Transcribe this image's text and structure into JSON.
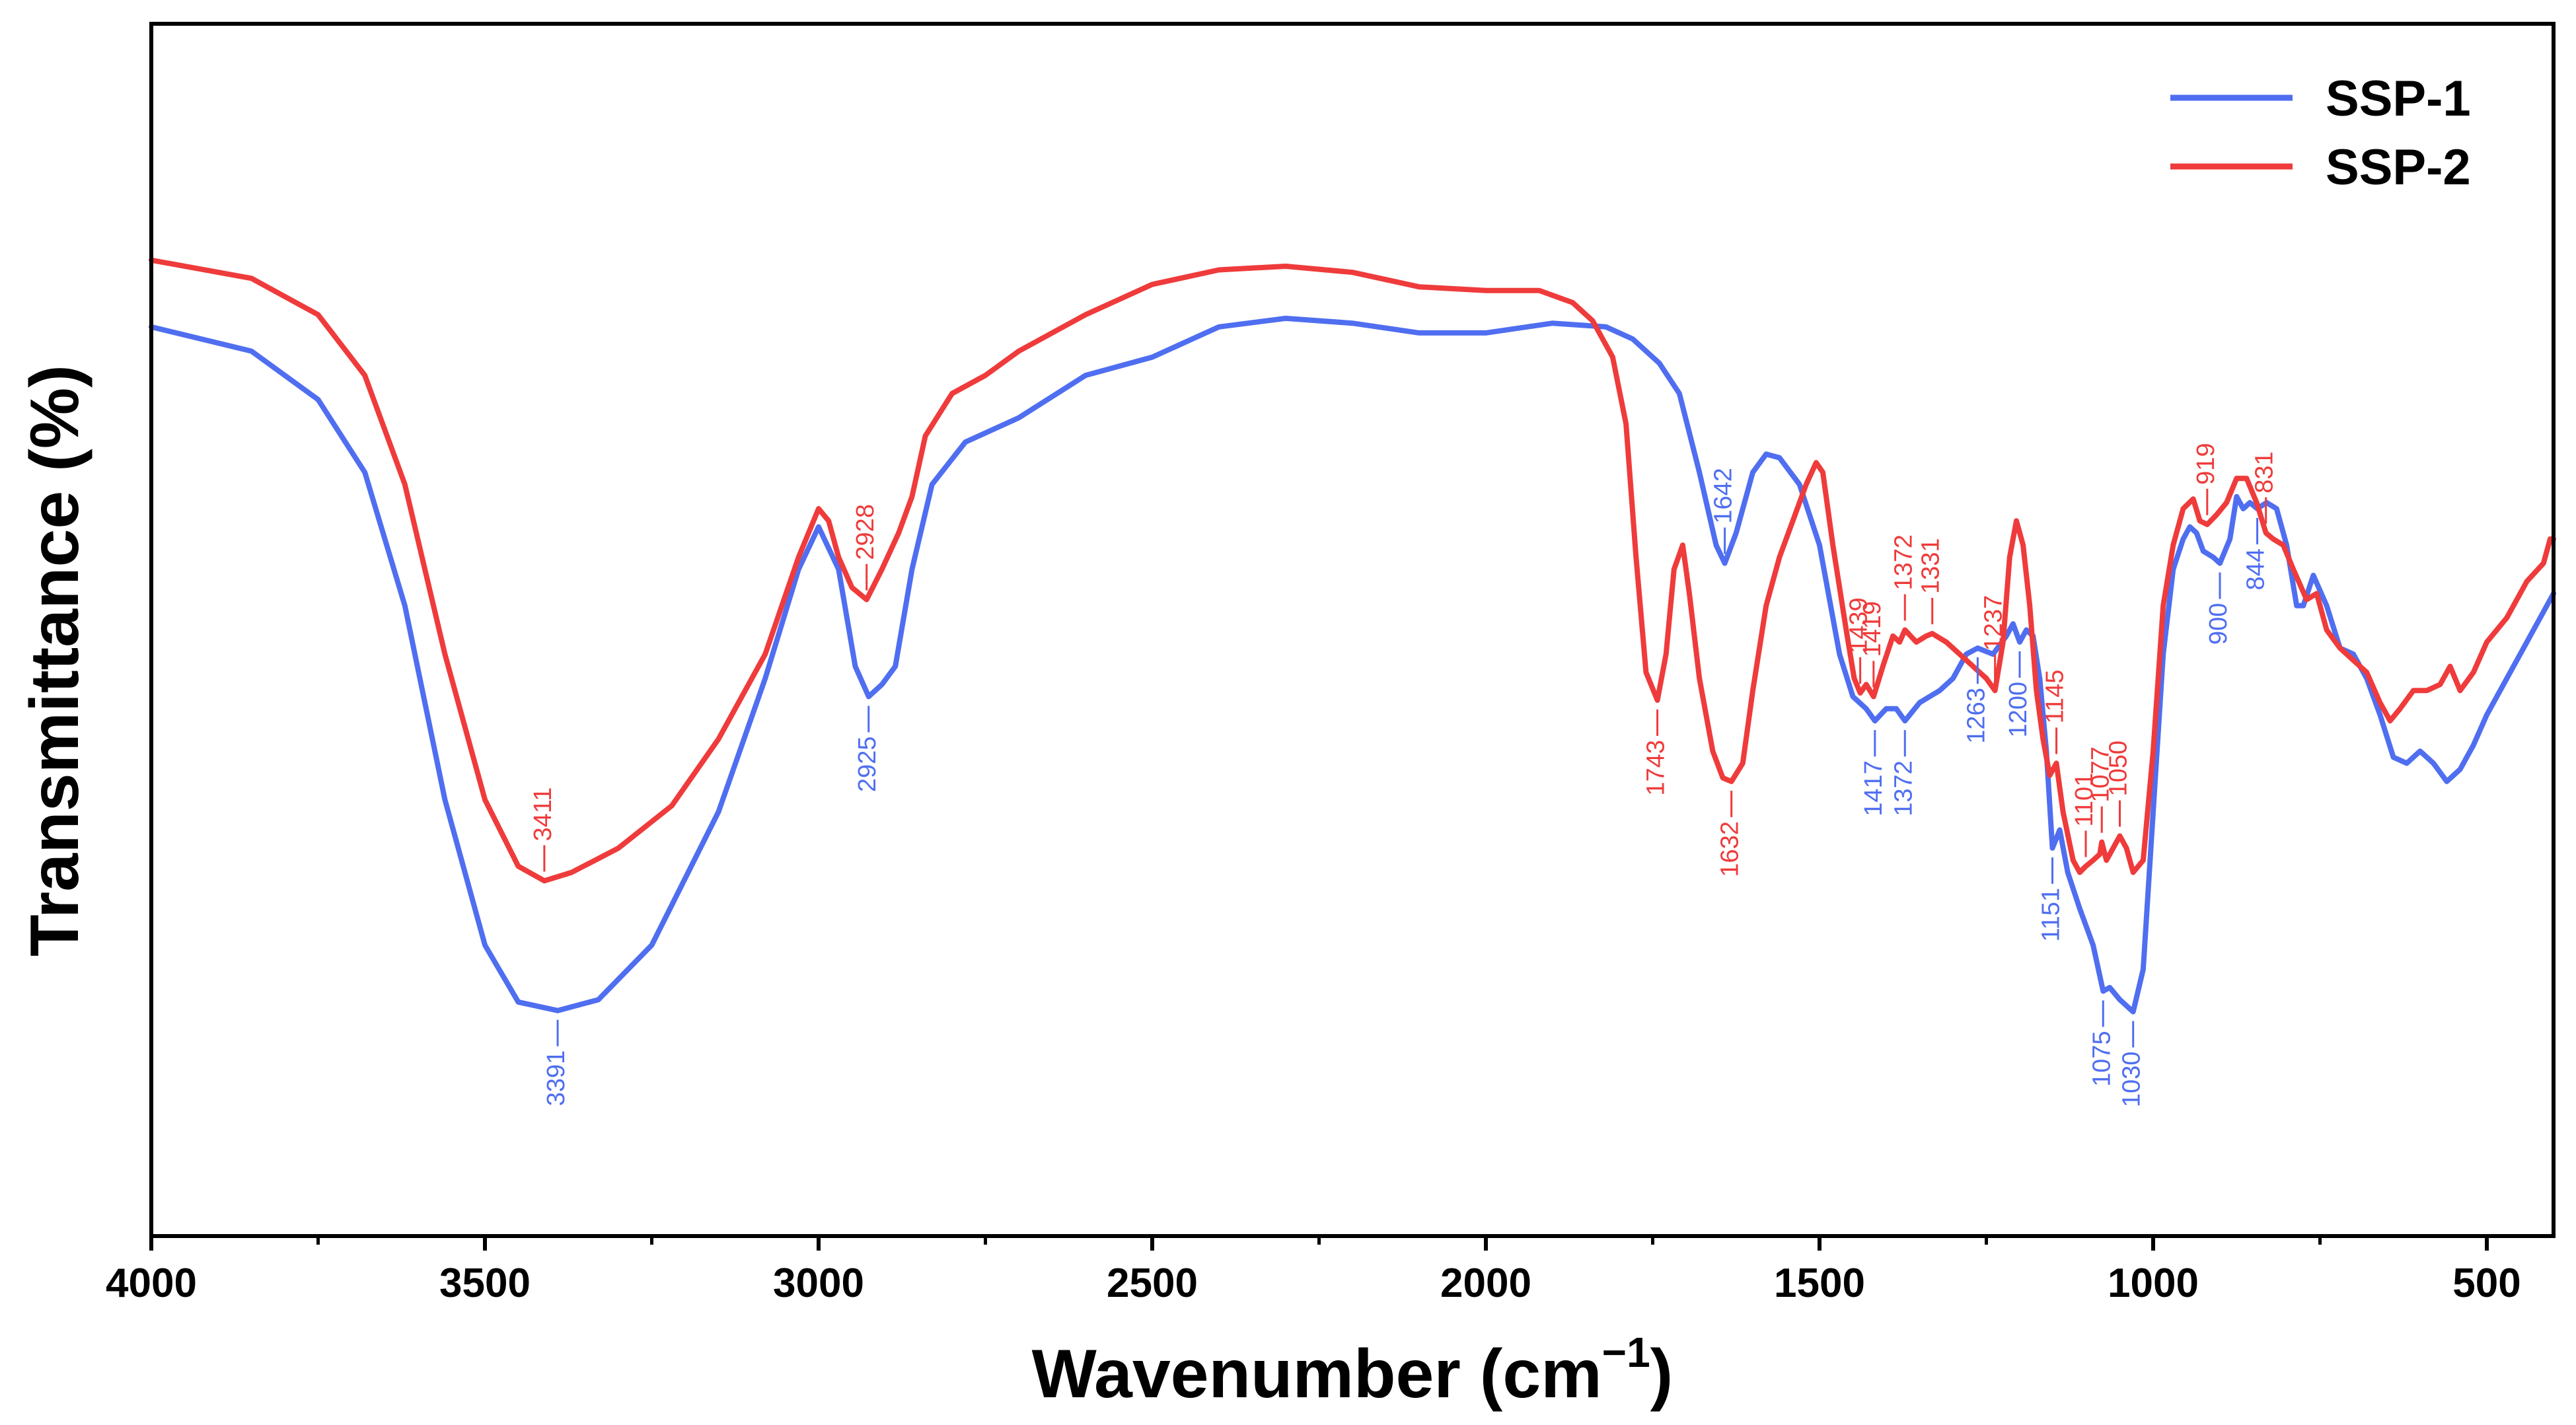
{
  "chart_data": {
    "type": "line",
    "title": "",
    "xlabel": "Wavenumber (cm",
    "xlabel_sup": "−1",
    "xlabel_close": ")",
    "ylabel": "Transmittance (%)",
    "xlim": [
      4000,
      400
    ],
    "ylim": [
      0,
      100
    ],
    "yticks_shown": false,
    "grid": false,
    "legend_position": "top-right",
    "x_ticks": [
      4000,
      3500,
      3000,
      2500,
      2000,
      1500,
      1000,
      500
    ],
    "x_tick_labels": [
      "4000",
      "3500",
      "3000",
      "2500",
      "2000",
      "1500",
      "1000",
      "500"
    ],
    "x_minor_step": 250,
    "series": [
      {
        "name": "SSP-1",
        "color": "#4f6ef0",
        "points": [
          [
            4000,
            75
          ],
          [
            3850,
            73
          ],
          [
            3750,
            69
          ],
          [
            3680,
            63
          ],
          [
            3620,
            52
          ],
          [
            3560,
            36
          ],
          [
            3500,
            24
          ],
          [
            3450,
            19.3
          ],
          [
            3391,
            18.6
          ],
          [
            3330,
            19.5
          ],
          [
            3250,
            24
          ],
          [
            3150,
            35
          ],
          [
            3080,
            46
          ],
          [
            3030,
            55
          ],
          [
            3000,
            58.5
          ],
          [
            2970,
            55
          ],
          [
            2945,
            47
          ],
          [
            2925,
            44.5
          ],
          [
            2905,
            45.5
          ],
          [
            2885,
            47
          ],
          [
            2860,
            55
          ],
          [
            2830,
            62
          ],
          [
            2780,
            65.5
          ],
          [
            2700,
            67.5
          ],
          [
            2600,
            71
          ],
          [
            2500,
            72.5
          ],
          [
            2400,
            75
          ],
          [
            2300,
            75.7
          ],
          [
            2200,
            75.3
          ],
          [
            2100,
            74.5
          ],
          [
            2000,
            74.5
          ],
          [
            1900,
            75.3
          ],
          [
            1820,
            75
          ],
          [
            1780,
            74
          ],
          [
            1740,
            72
          ],
          [
            1710,
            69.5
          ],
          [
            1680,
            63
          ],
          [
            1655,
            57
          ],
          [
            1642,
            55.5
          ],
          [
            1625,
            58
          ],
          [
            1600,
            63
          ],
          [
            1580,
            64.5
          ],
          [
            1560,
            64.2
          ],
          [
            1530,
            62
          ],
          [
            1500,
            57
          ],
          [
            1470,
            48
          ],
          [
            1450,
            44.5
          ],
          [
            1430,
            43.5
          ],
          [
            1417,
            42.5
          ],
          [
            1400,
            43.5
          ],
          [
            1385,
            43.5
          ],
          [
            1372,
            42.5
          ],
          [
            1350,
            44
          ],
          [
            1320,
            45
          ],
          [
            1300,
            46
          ],
          [
            1280,
            48
          ],
          [
            1263,
            48.5
          ],
          [
            1240,
            48
          ],
          [
            1220,
            49.5
          ],
          [
            1210,
            50.5
          ],
          [
            1200,
            49
          ],
          [
            1190,
            50
          ],
          [
            1180,
            49.5
          ],
          [
            1170,
            46
          ],
          [
            1160,
            40
          ],
          [
            1151,
            32
          ],
          [
            1140,
            33.5
          ],
          [
            1128,
            30
          ],
          [
            1110,
            27
          ],
          [
            1090,
            24
          ],
          [
            1075,
            20.2
          ],
          [
            1065,
            20.5
          ],
          [
            1050,
            19.5
          ],
          [
            1030,
            18.5
          ],
          [
            1015,
            22
          ],
          [
            1000,
            35
          ],
          [
            985,
            48
          ],
          [
            970,
            55
          ],
          [
            955,
            57.5
          ],
          [
            945,
            58.5
          ],
          [
            935,
            58
          ],
          [
            925,
            56.5
          ],
          [
            910,
            56
          ],
          [
            900,
            55.5
          ],
          [
            885,
            57.5
          ],
          [
            875,
            61
          ],
          [
            865,
            60
          ],
          [
            855,
            60.5
          ],
          [
            844,
            60
          ],
          [
            830,
            60.5
          ],
          [
            815,
            60
          ],
          [
            800,
            57
          ],
          [
            785,
            52
          ],
          [
            775,
            52
          ],
          [
            760,
            54.5
          ],
          [
            740,
            52
          ],
          [
            720,
            48.5
          ],
          [
            700,
            48
          ],
          [
            680,
            46
          ],
          [
            660,
            43
          ],
          [
            640,
            39.5
          ],
          [
            620,
            39
          ],
          [
            600,
            40
          ],
          [
            580,
            39
          ],
          [
            560,
            37.5
          ],
          [
            540,
            38.5
          ],
          [
            520,
            40.5
          ],
          [
            500,
            43
          ],
          [
            470,
            46
          ],
          [
            440,
            49
          ],
          [
            415,
            51.5
          ],
          [
            400,
            53
          ]
        ]
      },
      {
        "name": "SSP-2",
        "color": "#ef3b3b",
        "points": [
          [
            4000,
            80.5
          ],
          [
            3850,
            79
          ],
          [
            3750,
            76
          ],
          [
            3680,
            71
          ],
          [
            3620,
            62
          ],
          [
            3560,
            48
          ],
          [
            3500,
            36
          ],
          [
            3450,
            30.5
          ],
          [
            3411,
            29.3
          ],
          [
            3370,
            30
          ],
          [
            3300,
            32
          ],
          [
            3220,
            35.5
          ],
          [
            3150,
            41
          ],
          [
            3080,
            48
          ],
          [
            3030,
            56
          ],
          [
            3000,
            60
          ],
          [
            2985,
            59
          ],
          [
            2970,
            56
          ],
          [
            2950,
            53.5
          ],
          [
            2928,
            52.5
          ],
          [
            2905,
            55
          ],
          [
            2880,
            58
          ],
          [
            2860,
            61
          ],
          [
            2840,
            66
          ],
          [
            2800,
            69.5
          ],
          [
            2750,
            71
          ],
          [
            2700,
            73
          ],
          [
            2600,
            76
          ],
          [
            2500,
            78.5
          ],
          [
            2400,
            79.7
          ],
          [
            2300,
            80
          ],
          [
            2200,
            79.5
          ],
          [
            2100,
            78.3
          ],
          [
            2000,
            78
          ],
          [
            1920,
            78
          ],
          [
            1870,
            77
          ],
          [
            1840,
            75.5
          ],
          [
            1810,
            72.5
          ],
          [
            1790,
            67
          ],
          [
            1775,
            56
          ],
          [
            1760,
            46.5
          ],
          [
            1743,
            44.2
          ],
          [
            1730,
            48
          ],
          [
            1718,
            55
          ],
          [
            1705,
            57
          ],
          [
            1695,
            53
          ],
          [
            1680,
            46
          ],
          [
            1660,
            40
          ],
          [
            1645,
            37.8
          ],
          [
            1632,
            37.5
          ],
          [
            1615,
            39
          ],
          [
            1600,
            45
          ],
          [
            1580,
            52
          ],
          [
            1560,
            56
          ],
          [
            1540,
            59
          ],
          [
            1520,
            62
          ],
          [
            1505,
            63.8
          ],
          [
            1495,
            63
          ],
          [
            1480,
            57
          ],
          [
            1460,
            50
          ],
          [
            1448,
            46
          ],
          [
            1439,
            44.8
          ],
          [
            1430,
            45.5
          ],
          [
            1419,
            44.5
          ],
          [
            1405,
            47
          ],
          [
            1390,
            49.5
          ],
          [
            1380,
            49
          ],
          [
            1372,
            50
          ],
          [
            1355,
            49
          ],
          [
            1340,
            49.5
          ],
          [
            1331,
            49.7
          ],
          [
            1310,
            49
          ],
          [
            1290,
            48
          ],
          [
            1270,
            47
          ],
          [
            1250,
            46
          ],
          [
            1237,
            45
          ],
          [
            1225,
            49
          ],
          [
            1215,
            56
          ],
          [
            1205,
            59
          ],
          [
            1195,
            57
          ],
          [
            1185,
            52
          ],
          [
            1175,
            45
          ],
          [
            1165,
            41
          ],
          [
            1155,
            38
          ],
          [
            1145,
            39
          ],
          [
            1135,
            35
          ],
          [
            1120,
            31
          ],
          [
            1110,
            30
          ],
          [
            1101,
            30.5
          ],
          [
            1090,
            31
          ],
          [
            1080,
            31.5
          ],
          [
            1077,
            32.5
          ],
          [
            1070,
            31
          ],
          [
            1060,
            32
          ],
          [
            1050,
            33
          ],
          [
            1040,
            32
          ],
          [
            1030,
            30
          ],
          [
            1015,
            31
          ],
          [
            1000,
            40
          ],
          [
            985,
            52
          ],
          [
            970,
            57
          ],
          [
            955,
            60
          ],
          [
            940,
            60.8
          ],
          [
            930,
            59
          ],
          [
            919,
            58.7
          ],
          [
            905,
            59.5
          ],
          [
            890,
            60.5
          ],
          [
            875,
            62.5
          ],
          [
            860,
            62.5
          ],
          [
            845,
            60.5
          ],
          [
            831,
            58
          ],
          [
            820,
            57.5
          ],
          [
            805,
            57
          ],
          [
            790,
            55
          ],
          [
            770,
            52.5
          ],
          [
            755,
            53
          ],
          [
            740,
            50
          ],
          [
            720,
            48.5
          ],
          [
            700,
            47.5
          ],
          [
            680,
            46.5
          ],
          [
            660,
            44
          ],
          [
            645,
            42.5
          ],
          [
            630,
            43.5
          ],
          [
            610,
            45
          ],
          [
            590,
            45
          ],
          [
            570,
            45.5
          ],
          [
            555,
            47
          ],
          [
            540,
            45
          ],
          [
            520,
            46.5
          ],
          [
            500,
            49
          ],
          [
            470,
            51
          ],
          [
            440,
            54
          ],
          [
            415,
            55.5
          ],
          [
            405,
            57.5
          ],
          [
            400,
            57.5
          ]
        ]
      }
    ],
    "annotations": [
      {
        "text": "3391",
        "x": 3391,
        "y": 18.6,
        "series": "SSP-1",
        "side": "below"
      },
      {
        "text": "2925",
        "x": 2925,
        "y": 44.5,
        "series": "SSP-1",
        "side": "below"
      },
      {
        "text": "1642",
        "x": 1642,
        "y": 55.5,
        "series": "SSP-1",
        "side": "above"
      },
      {
        "text": "1417",
        "x": 1417,
        "y": 42.5,
        "series": "SSP-1",
        "side": "below"
      },
      {
        "text": "1372",
        "x": 1372,
        "y": 42.5,
        "series": "SSP-1",
        "side": "below"
      },
      {
        "text": "1263",
        "x": 1263,
        "y": 48.5,
        "series": "SSP-1",
        "side": "below"
      },
      {
        "text": "1200",
        "x": 1200,
        "y": 49.0,
        "series": "SSP-1",
        "side": "below"
      },
      {
        "text": "1151",
        "x": 1151,
        "y": 32.0,
        "series": "SSP-1",
        "side": "below"
      },
      {
        "text": "1075",
        "x": 1075,
        "y": 20.2,
        "series": "SSP-1",
        "side": "below"
      },
      {
        "text": "1030",
        "x": 1030,
        "y": 18.5,
        "series": "SSP-1",
        "side": "below"
      },
      {
        "text": "900",
        "x": 900,
        "y": 55.5,
        "series": "SSP-1",
        "side": "below"
      },
      {
        "text": "844",
        "x": 844,
        "y": 60.0,
        "series": "SSP-1",
        "side": "below"
      },
      {
        "text": "3411",
        "x": 3411,
        "y": 29.3,
        "series": "SSP-2",
        "side": "above"
      },
      {
        "text": "2928",
        "x": 2928,
        "y": 52.5,
        "series": "SSP-2",
        "side": "above"
      },
      {
        "text": "1743",
        "x": 1743,
        "y": 44.2,
        "series": "SSP-2",
        "side": "below"
      },
      {
        "text": "1632",
        "x": 1632,
        "y": 37.5,
        "series": "SSP-2",
        "side": "below"
      },
      {
        "text": "1439",
        "x": 1439,
        "y": 44.8,
        "series": "SSP-2",
        "side": "above"
      },
      {
        "text": "1419",
        "x": 1419,
        "y": 44.5,
        "series": "SSP-2",
        "side": "above"
      },
      {
        "text": "1372",
        "x": 1372,
        "y": 50.0,
        "series": "SSP-2",
        "side": "above"
      },
      {
        "text": "1331",
        "x": 1331,
        "y": 49.7,
        "series": "SSP-2",
        "side": "above"
      },
      {
        "text": "1237",
        "x": 1237,
        "y": 45.0,
        "series": "SSP-2",
        "side": "above"
      },
      {
        "text": "1145",
        "x": 1145,
        "y": 39.0,
        "series": "SSP-2",
        "side": "above"
      },
      {
        "text": "1101",
        "x": 1101,
        "y": 30.5,
        "series": "SSP-2",
        "side": "above"
      },
      {
        "text": "1077",
        "x": 1077,
        "y": 32.5,
        "series": "SSP-2",
        "side": "above"
      },
      {
        "text": "1050",
        "x": 1050,
        "y": 33.0,
        "series": "SSP-2",
        "side": "above"
      },
      {
        "text": "919",
        "x": 919,
        "y": 58.7,
        "series": "SSP-2",
        "side": "above"
      },
      {
        "text": "831",
        "x": 831,
        "y": 58.0,
        "series": "SSP-2",
        "side": "above"
      }
    ]
  }
}
